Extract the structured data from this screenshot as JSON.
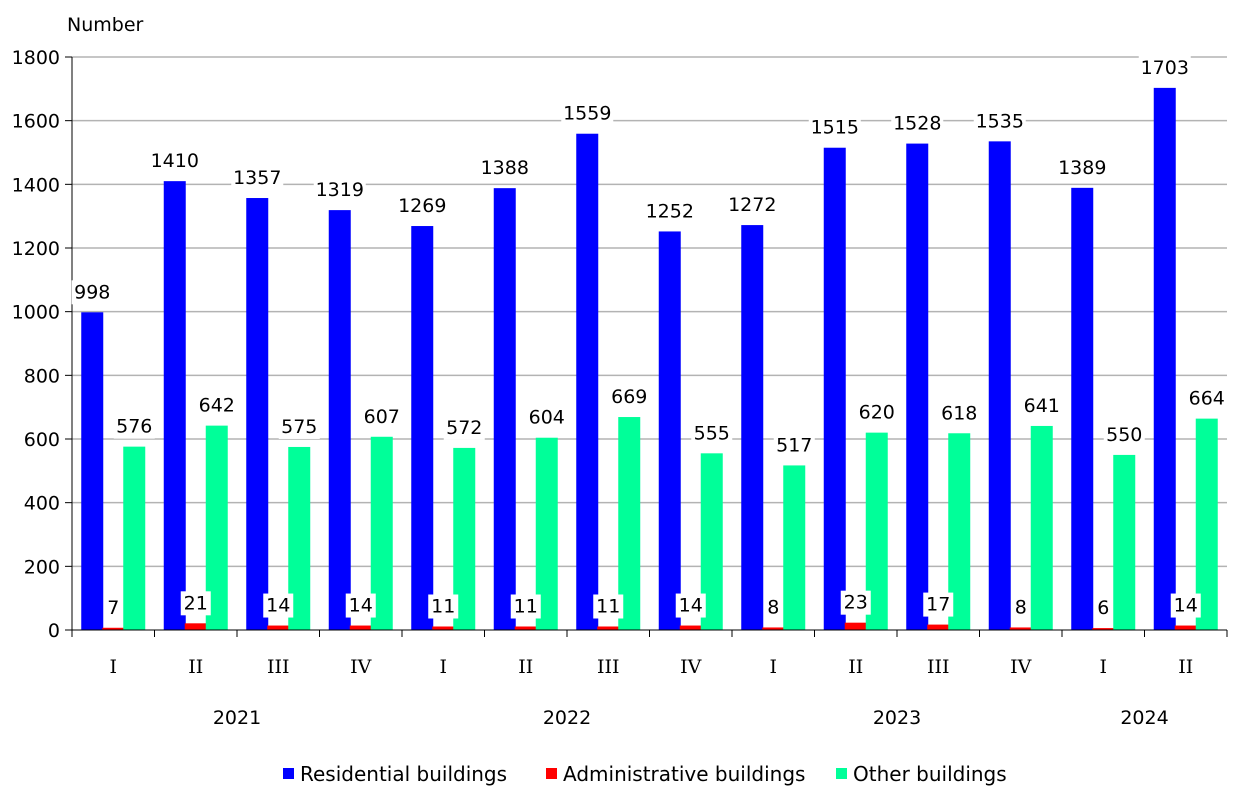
{
  "chart_data": {
    "type": "bar",
    "ylabel": "Number",
    "ylim": [
      0,
      1800
    ],
    "yticks": [
      0,
      200,
      400,
      600,
      800,
      1000,
      1200,
      1400,
      1600,
      1800
    ],
    "grid": true,
    "legend_position": "bottom",
    "categories": [
      "I",
      "II",
      "III",
      "IV",
      "I",
      "II",
      "III",
      "IV",
      "I",
      "II",
      "III",
      "IV",
      "I",
      "II"
    ],
    "year_groups": [
      {
        "label": "2021",
        "start": 0,
        "end": 3
      },
      {
        "label": "2022",
        "start": 4,
        "end": 7
      },
      {
        "label": "2023",
        "start": 8,
        "end": 11
      },
      {
        "label": "2024",
        "start": 12,
        "end": 13
      }
    ],
    "series": [
      {
        "name": "Residential buildings",
        "color": "#0000ff",
        "values": [
          998,
          1410,
          1357,
          1319,
          1269,
          1388,
          1559,
          1252,
          1272,
          1515,
          1528,
          1535,
          1389,
          1703
        ]
      },
      {
        "name": "Administrative buildings",
        "color": "#ff0000",
        "values": [
          7,
          21,
          14,
          14,
          11,
          11,
          11,
          14,
          8,
          23,
          17,
          8,
          6,
          14
        ]
      },
      {
        "name": "Other buildings",
        "color": "#00ff99",
        "values": [
          576,
          642,
          575,
          607,
          572,
          604,
          669,
          555,
          517,
          620,
          618,
          641,
          550,
          664
        ]
      }
    ]
  }
}
